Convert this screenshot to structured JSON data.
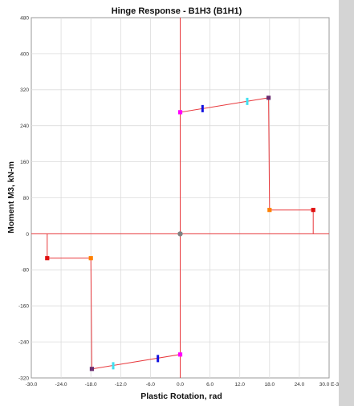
{
  "chart_data": {
    "type": "line",
    "title": "Hinge Response - B1H3 (B1H1)",
    "xlabel": "Plastic Rotation, rad",
    "ylabel": "Moment M3, kN-m",
    "xlim": [
      -30,
      30
    ],
    "ylim": [
      -320,
      480
    ],
    "x_ticks": [
      "-30.0",
      "-24.0",
      "-18.0",
      "-12.0",
      "-6.0",
      "0.0",
      "6.0",
      "12.0",
      "18.0",
      "24.0",
      "30.0 E-3"
    ],
    "x_tick_values": [
      -30,
      -24,
      -18,
      -12,
      -6,
      0,
      6,
      12,
      18,
      24,
      30
    ],
    "y_ticks": [
      "480",
      "400",
      "320",
      "240",
      "160",
      "80",
      "0",
      "-80",
      "-160",
      "-240",
      "-320"
    ],
    "y_tick_values": [
      480,
      400,
      320,
      240,
      160,
      80,
      0,
      -80,
      -160,
      -240,
      -320
    ],
    "grid": true,
    "series": [
      {
        "color": "#e8393d",
        "points": [
          [
            -26.8,
            0
          ],
          [
            -26.8,
            -54
          ],
          [
            -18,
            -54
          ],
          [
            -17.8,
            -300
          ],
          [
            0,
            -268
          ],
          [
            0,
            270
          ],
          [
            17.8,
            302
          ],
          [
            18,
            53
          ],
          [
            26.8,
            53
          ],
          [
            26.8,
            0
          ]
        ]
      }
    ],
    "axis_lines": {
      "x": 0,
      "y": 0,
      "color": "#e8393d"
    },
    "markers": [
      {
        "x": 0,
        "y": 0,
        "kind": "origin",
        "color": "#808080"
      },
      {
        "x": -26.8,
        "y": -54,
        "kind": "square",
        "color": "#e01010"
      },
      {
        "x": -18,
        "y": -54,
        "kind": "square",
        "color": "#ff8000"
      },
      {
        "x": -17.8,
        "y": -300,
        "kind": "square",
        "color": "#6a2c70"
      },
      {
        "x": -13.5,
        "y": -293,
        "kind": "bar",
        "color": "#40e0f0"
      },
      {
        "x": -4.5,
        "y": -277,
        "kind": "bar",
        "color": "#1010e0"
      },
      {
        "x": 0,
        "y": -268,
        "kind": "square",
        "color": "#ff00ff"
      },
      {
        "x": 0,
        "y": 270,
        "kind": "square",
        "color": "#ff00ff"
      },
      {
        "x": 4.5,
        "y": 278,
        "kind": "bar",
        "color": "#1010e0"
      },
      {
        "x": 13.5,
        "y": 294,
        "kind": "bar",
        "color": "#40e0f0"
      },
      {
        "x": 17.8,
        "y": 302,
        "kind": "square",
        "color": "#6a2c70"
      },
      {
        "x": 18,
        "y": 53,
        "kind": "square",
        "color": "#ff8000"
      },
      {
        "x": 26.8,
        "y": 53,
        "kind": "square",
        "color": "#e01010"
      }
    ]
  }
}
